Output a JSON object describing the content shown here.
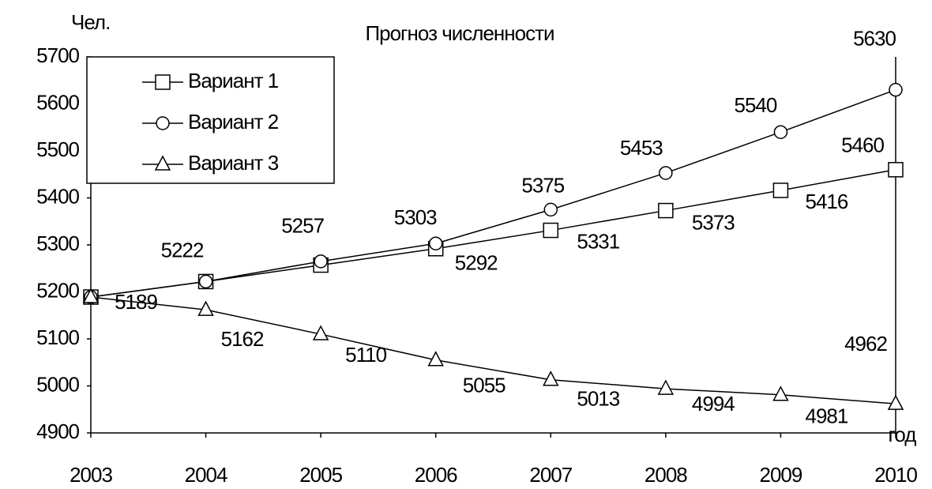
{
  "chart_data": {
    "type": "line",
    "title": "Прогноз численности",
    "y_label": "Чел.",
    "x_label": "год",
    "categories": [
      "2003",
      "2004",
      "2005",
      "2006",
      "2007",
      "2008",
      "2009",
      "2010"
    ],
    "series": [
      {
        "name": "Вариант 1",
        "color": "#000000",
        "marker": "square",
        "values": [
          5189,
          5222,
          5257,
          5292,
          5331,
          5373,
          5416,
          5460
        ]
      },
      {
        "name": "Вариант 2",
        "color": "#000000",
        "marker": "circle",
        "values": [
          5189,
          5222,
          5265,
          5303,
          5375,
          5453,
          5540,
          5630
        ]
      },
      {
        "name": "Вариант 3",
        "color": "#000000",
        "marker": "triangle",
        "values": [
          5189,
          5162,
          5110,
          5055,
          5013,
          4994,
          4981,
          4962
        ]
      }
    ],
    "ylim": [
      4900,
      5700
    ],
    "yticks": [
      4900,
      5000,
      5100,
      5200,
      5300,
      5400,
      5500,
      5600,
      5700
    ],
    "grid": false,
    "legend": "upper left"
  }
}
